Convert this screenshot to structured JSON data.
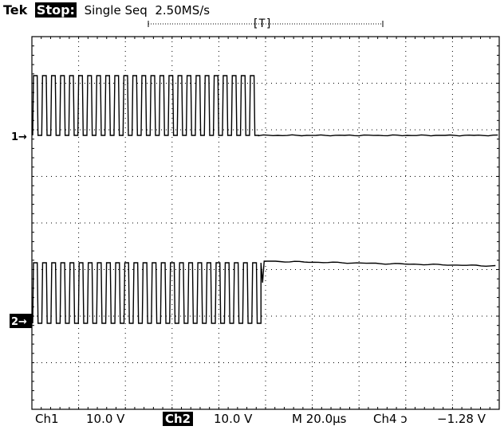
{
  "header": {
    "brand": "Tek",
    "run_state": "Stop:",
    "acq_mode": "Single Seq",
    "sample_rate": "2.50MS/s",
    "trigger_marker": "[T]"
  },
  "markers": {
    "ch1": "1→",
    "ch2": "2→"
  },
  "footer": {
    "ch1_label": "Ch1",
    "ch1_scale": "10.0 V",
    "ch2_label": "Ch2",
    "ch2_scale": "10.0 V",
    "timebase": "M 20.0µs",
    "trigger_source": "Ch4",
    "trigger_slope": "ↄ",
    "trigger_level": "−1.28 V"
  },
  "scope": {
    "horizontal_divisions": 10,
    "vertical_divisions": 8,
    "grid": true,
    "channel_1": {
      "pulse_count": 25,
      "state_after_burst": "low"
    },
    "channel_2": {
      "pulse_count": 25,
      "state_after_burst": "high"
    }
  }
}
